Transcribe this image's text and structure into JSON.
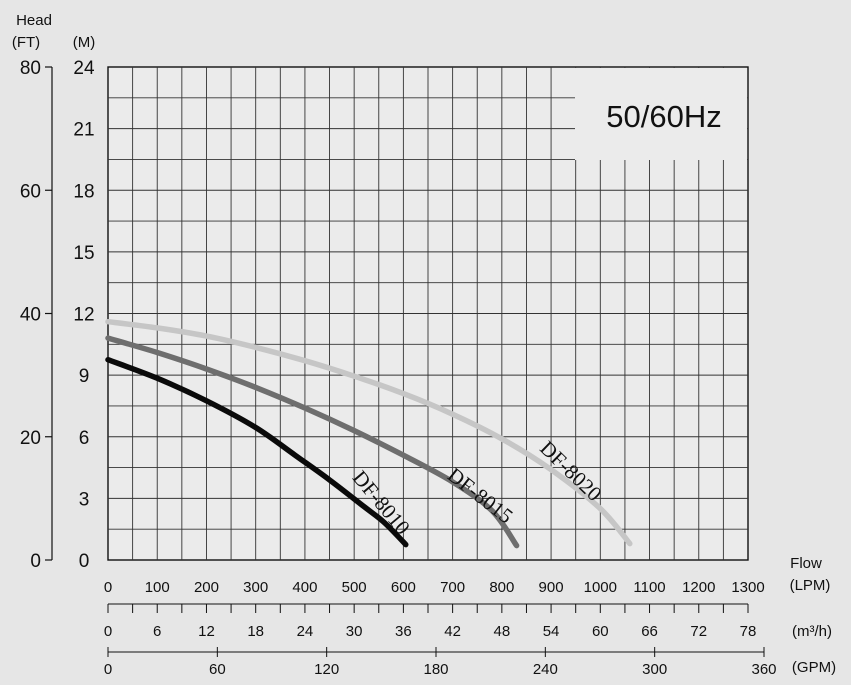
{
  "chart_data": {
    "type": "line",
    "hz_label": "50/60Hz",
    "head_title": "Head",
    "ft_unit": "(FT)",
    "m_unit": "(M)",
    "flow_title": "Flow",
    "lpm_unit": "(LPM)",
    "m3h_unit": "(m³/h)",
    "gpm_unit": "(GPM)",
    "y_m_ticks": [
      "0",
      "3",
      "6",
      "9",
      "12",
      "15",
      "18",
      "21",
      "24"
    ],
    "y_ft_ticks": [
      "0",
      "20",
      "40",
      "60",
      "80"
    ],
    "x_lpm_ticks": [
      "0",
      "100",
      "200",
      "300",
      "400",
      "500",
      "600",
      "700",
      "800",
      "900",
      "1000",
      "1100",
      "1200",
      "1300"
    ],
    "x_m3h_ticks": [
      "0",
      "6",
      "12",
      "18",
      "24",
      "30",
      "36",
      "42",
      "48",
      "54",
      "60",
      "66",
      "72",
      "78"
    ],
    "x_gpm_ticks": [
      "0",
      "60",
      "120",
      "180",
      "240",
      "300",
      "360"
    ],
    "xlim_lpm": [
      0,
      1300
    ],
    "ylim_m": [
      0,
      24
    ],
    "grid": true,
    "series": [
      {
        "name": "DF-8020",
        "color": "#c6c6c6",
        "points": [
          [
            0,
            11.6
          ],
          [
            100,
            11.3
          ],
          [
            200,
            10.9
          ],
          [
            300,
            10.35
          ],
          [
            400,
            9.7
          ],
          [
            500,
            8.95
          ],
          [
            600,
            8.1
          ],
          [
            700,
            7.1
          ],
          [
            800,
            5.9
          ],
          [
            900,
            4.4
          ],
          [
            1000,
            2.5
          ],
          [
            1060,
            0.8
          ]
        ]
      },
      {
        "name": "DF-8015",
        "color": "#6e6e6e",
        "points": [
          [
            0,
            10.8
          ],
          [
            100,
            10.1
          ],
          [
            200,
            9.3
          ],
          [
            300,
            8.4
          ],
          [
            400,
            7.4
          ],
          [
            500,
            6.3
          ],
          [
            600,
            5.1
          ],
          [
            700,
            3.8
          ],
          [
            780,
            2.4
          ],
          [
            830,
            0.7
          ]
        ]
      },
      {
        "name": "DF-8010",
        "color": "#0a0a0a",
        "points": [
          [
            0,
            9.75
          ],
          [
            100,
            8.85
          ],
          [
            200,
            7.75
          ],
          [
            300,
            6.45
          ],
          [
            380,
            5.1
          ],
          [
            450,
            3.9
          ],
          [
            520,
            2.6
          ],
          [
            560,
            1.85
          ],
          [
            605,
            0.75
          ]
        ]
      }
    ]
  }
}
